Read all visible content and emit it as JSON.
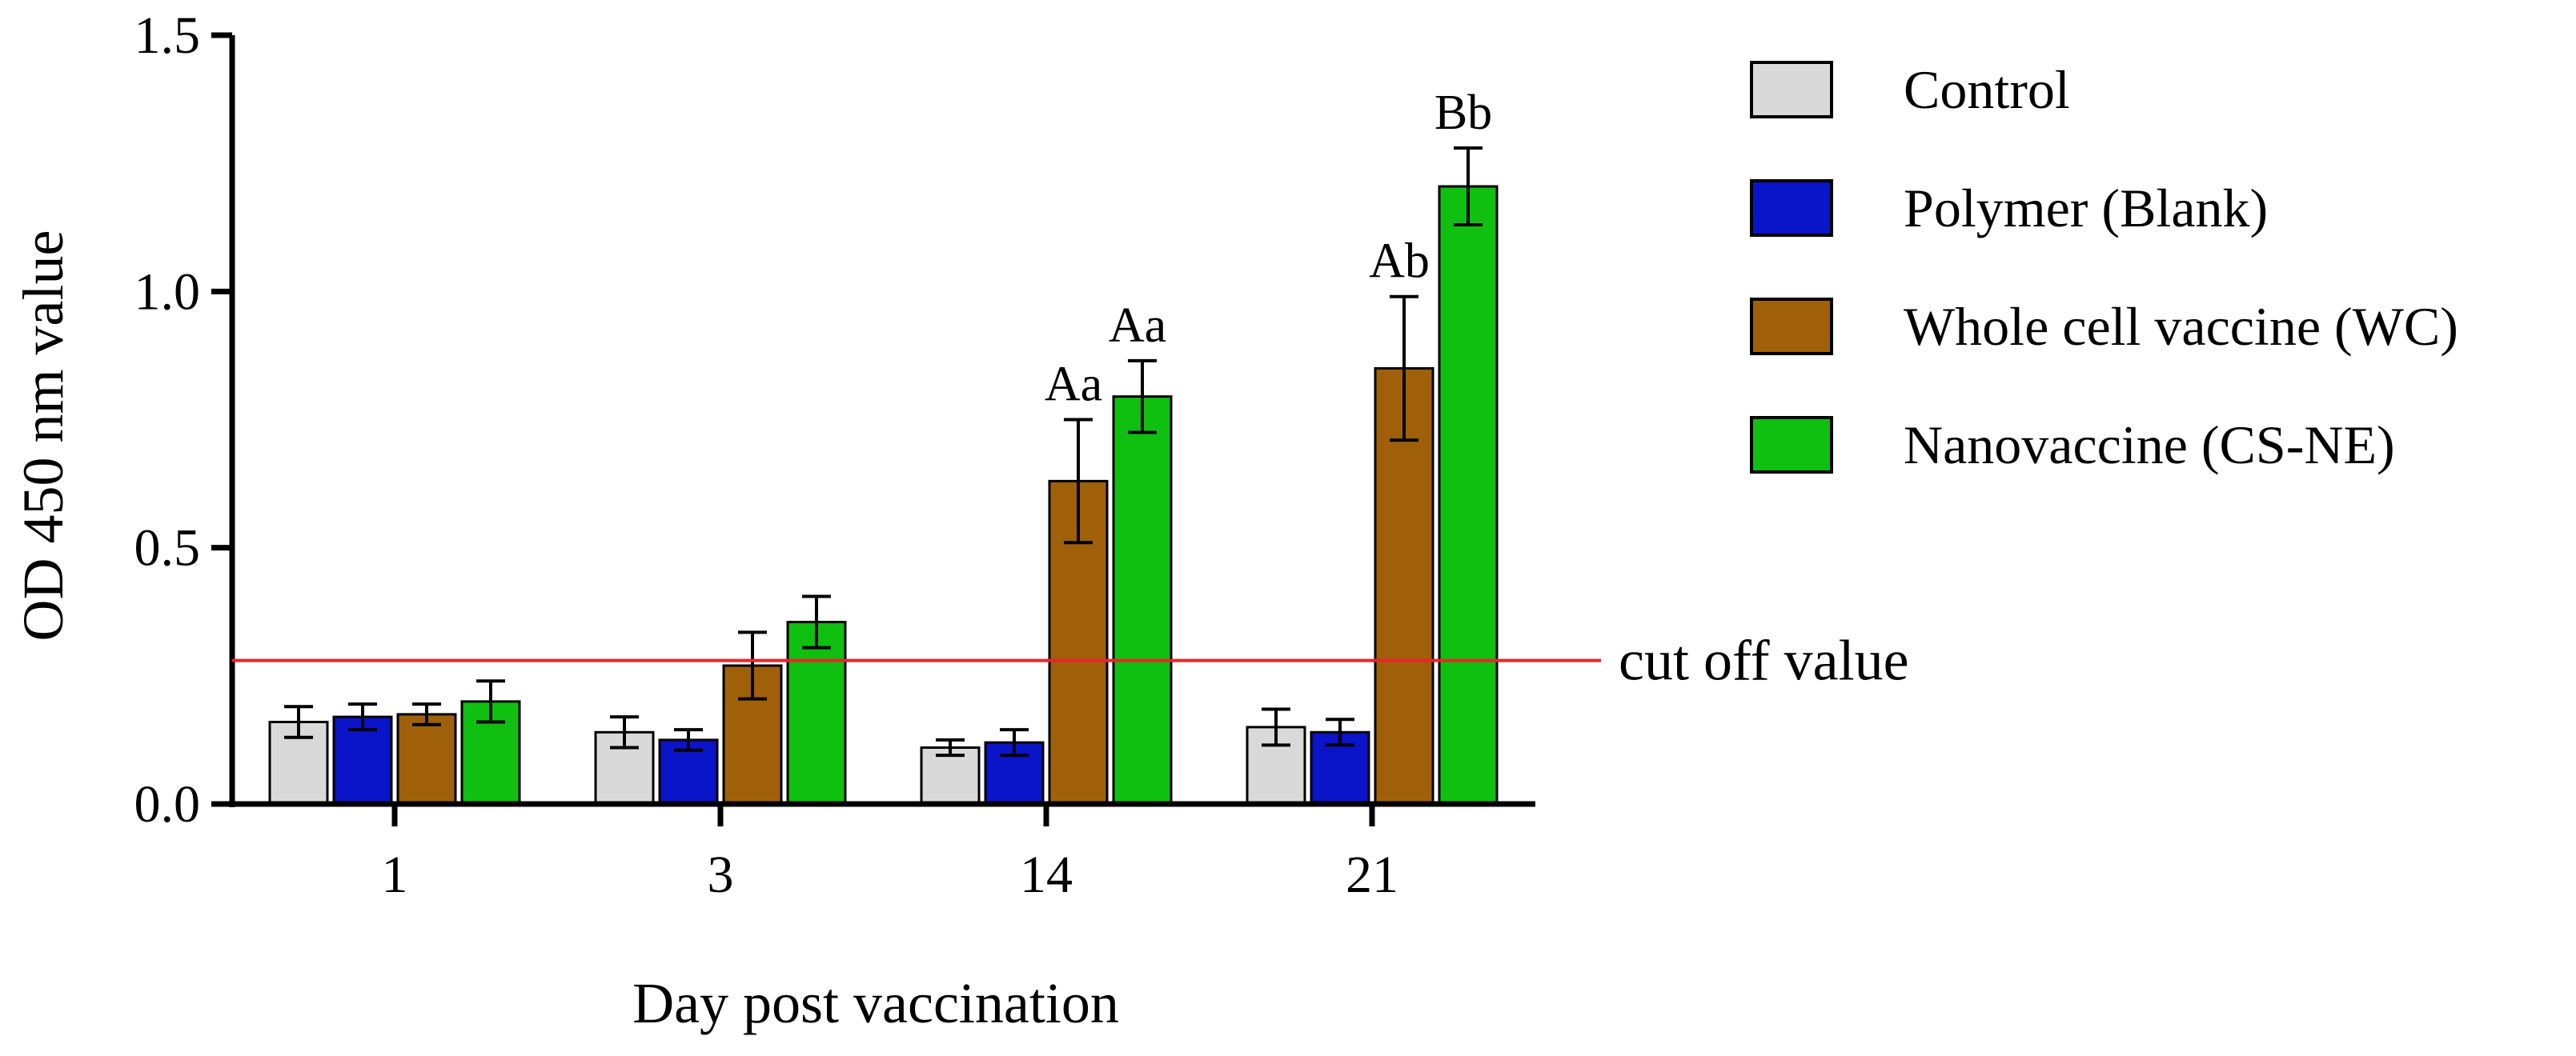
{
  "chart_data": {
    "type": "bar",
    "title": "",
    "xlabel": "Day post vaccination",
    "ylabel": "OD 450 nm value",
    "ylim": [
      0,
      1.5
    ],
    "yticks": [
      "0.0",
      "0.5",
      "1.0",
      "1.5"
    ],
    "categories": [
      "1",
      "3",
      "14",
      "21"
    ],
    "series": [
      {
        "name": "Control",
        "color": "#d9d9d9",
        "values": [
          0.16,
          0.14,
          0.11,
          0.15
        ],
        "errors": [
          0.03,
          0.03,
          0.015,
          0.035
        ]
      },
      {
        "name": "Polymer (Blank)",
        "color": "#0a14c8",
        "values": [
          0.17,
          0.125,
          0.12,
          0.14
        ],
        "errors": [
          0.025,
          0.02,
          0.025,
          0.025
        ]
      },
      {
        "name": "Whole cell vaccine (WC)",
        "color": "#a0600a",
        "values": [
          0.175,
          0.27,
          0.63,
          0.85
        ],
        "errors": [
          0.02,
          0.065,
          0.12,
          0.14
        ]
      },
      {
        "name": "Nanovaccine (CS-NE)",
        "color": "#10c010",
        "values": [
          0.2,
          0.355,
          0.795,
          1.205
        ],
        "errors": [
          0.04,
          0.05,
          0.07,
          0.075
        ]
      }
    ],
    "annotations": [
      {
        "category": "14",
        "series": "Whole cell vaccine (WC)",
        "text": "Aa"
      },
      {
        "category": "14",
        "series": "Nanovaccine (CS-NE)",
        "text": "Aa"
      },
      {
        "category": "21",
        "series": "Whole cell vaccine (WC)",
        "text": "Ab"
      },
      {
        "category": "21",
        "series": "Nanovaccine (CS-NE)",
        "text": "Bb"
      }
    ],
    "reference_line": {
      "value": 0.28,
      "label": "cut off value",
      "color": "#e8262a"
    },
    "legend_position": "right"
  }
}
